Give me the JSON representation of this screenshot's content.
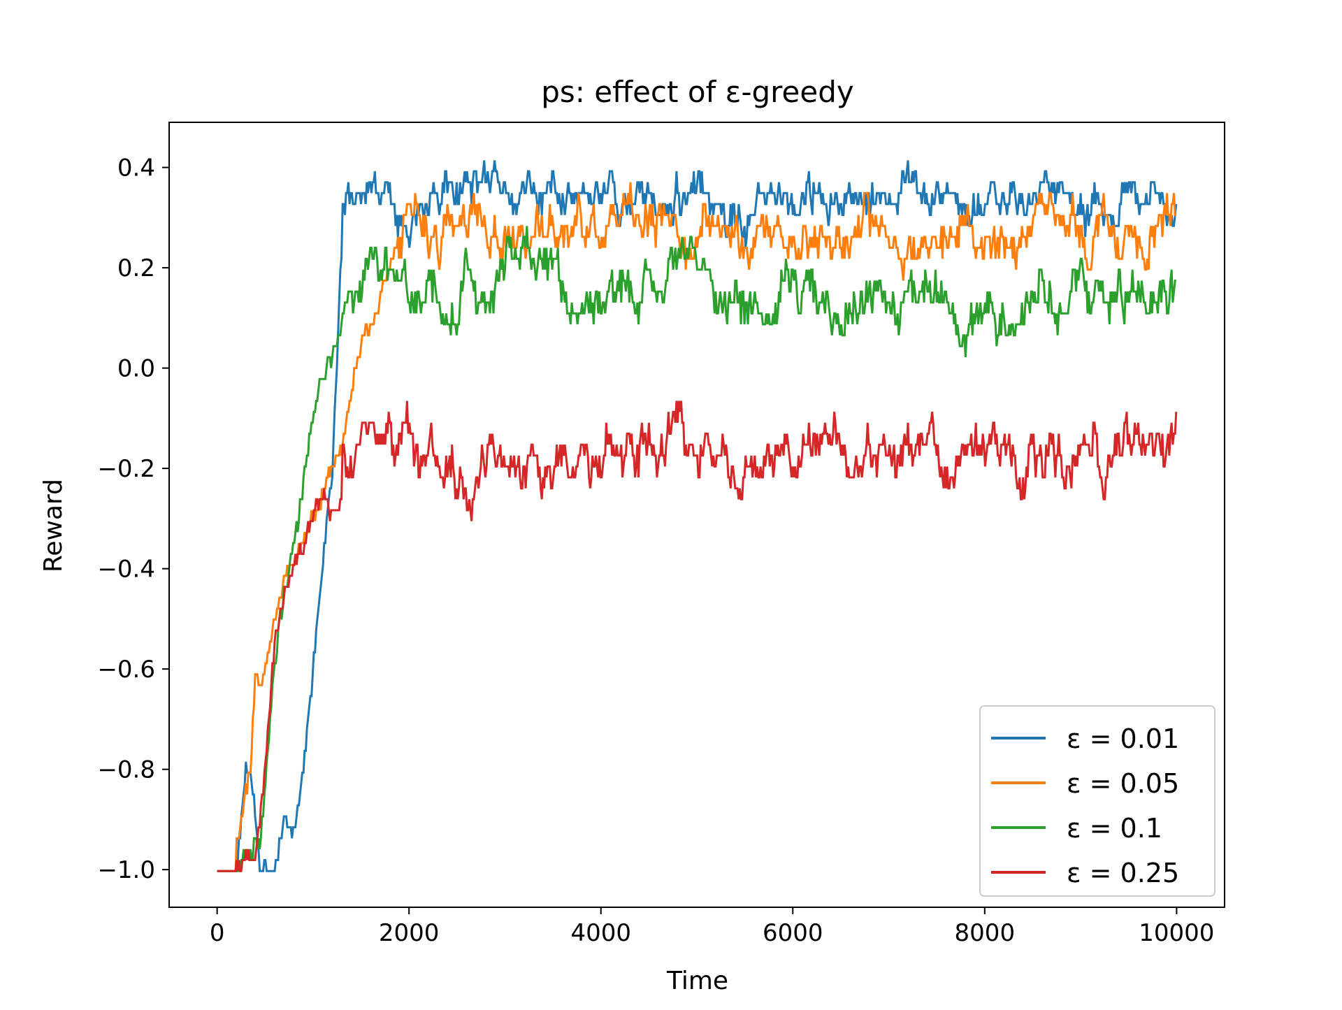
{
  "chart_data": {
    "type": "line",
    "title": "ps: effect of ε-greedy",
    "xlabel": "Time",
    "ylabel": "Reward",
    "xlim": [
      -500,
      10500
    ],
    "ylim": [
      -1.075,
      0.49
    ],
    "xticks": [
      0,
      2000,
      4000,
      6000,
      8000,
      10000
    ],
    "xtick_labels": [
      "0",
      "2000",
      "4000",
      "6000",
      "8000",
      "10000"
    ],
    "yticks": [
      -1.0,
      -0.8,
      -0.6,
      -0.4,
      -0.2,
      0.0,
      0.2,
      0.4
    ],
    "ytick_labels": [
      "−1.0",
      "−0.8",
      "−0.6",
      "−0.4",
      "−0.2",
      "0.0",
      "0.2",
      "0.4"
    ],
    "grid": false,
    "legend_position": "bottom-right",
    "series": [
      {
        "name": "ε = 0.01",
        "color": "#1f77b4",
        "curve": {
          "x": [
            0,
            200,
            300,
            350,
            450,
            600,
            700,
            800,
            900,
            1000,
            1100,
            1200,
            1300,
            1400,
            1600,
            2000,
            10000
          ],
          "y": [
            -1.0,
            -1.0,
            -0.8,
            -0.8,
            -1.0,
            -1.0,
            -0.9,
            -0.93,
            -0.8,
            -0.6,
            -0.4,
            -0.2,
            0.25,
            0.3,
            0.32,
            0.34,
            0.36
          ]
        },
        "plateau": 0.335,
        "noise": 0.035,
        "start_noise_x": 1300,
        "seed": 11
      },
      {
        "name": "ε = 0.05",
        "color": "#ff7f0e",
        "curve": {
          "x": [
            0,
            150,
            250,
            350,
            400,
            450,
            550,
            650,
            800,
            1000,
            1200,
            1300,
            1400,
            1500,
            1650,
            1800,
            2000,
            2500,
            10000
          ],
          "y": [
            -1.0,
            -1.0,
            -0.9,
            -0.8,
            -0.6,
            -0.65,
            -0.55,
            -0.45,
            -0.38,
            -0.3,
            -0.2,
            -0.15,
            -0.05,
            0.05,
            0.1,
            0.22,
            0.25,
            0.27,
            0.27
          ]
        },
        "plateau": 0.265,
        "noise": 0.04,
        "start_noise_x": 1800,
        "seed": 23
      },
      {
        "name": "ε = 0.1",
        "color": "#2ca02c",
        "curve": {
          "x": [
            0,
            200,
            300,
            450,
            550,
            650,
            750,
            850,
            950,
            1050,
            1150,
            1250,
            1350,
            1500,
            10000
          ],
          "y": [
            -1.0,
            -1.0,
            -0.97,
            -0.95,
            -0.7,
            -0.5,
            -0.4,
            -0.3,
            -0.15,
            -0.05,
            0.0,
            0.05,
            0.15,
            0.16,
            0.16
          ]
        },
        "plateau": 0.155,
        "noise": 0.045,
        "start_noise_x": 1400,
        "seed": 37
      },
      {
        "name": "ε = 0.25",
        "color": "#d62728",
        "curve": {
          "x": [
            0,
            200,
            300,
            400,
            500,
            600,
            700,
            800,
            900,
            1000,
            1100,
            1200,
            1300,
            1500,
            2000,
            10000
          ],
          "y": [
            -1.0,
            -1.0,
            -0.97,
            -0.98,
            -0.8,
            -0.55,
            -0.45,
            -0.4,
            -0.35,
            -0.3,
            -0.25,
            -0.3,
            -0.25,
            -0.2,
            -0.17,
            -0.17
          ]
        },
        "plateau": -0.175,
        "noise": 0.045,
        "start_noise_x": 1300,
        "seed": 53
      }
    ]
  }
}
